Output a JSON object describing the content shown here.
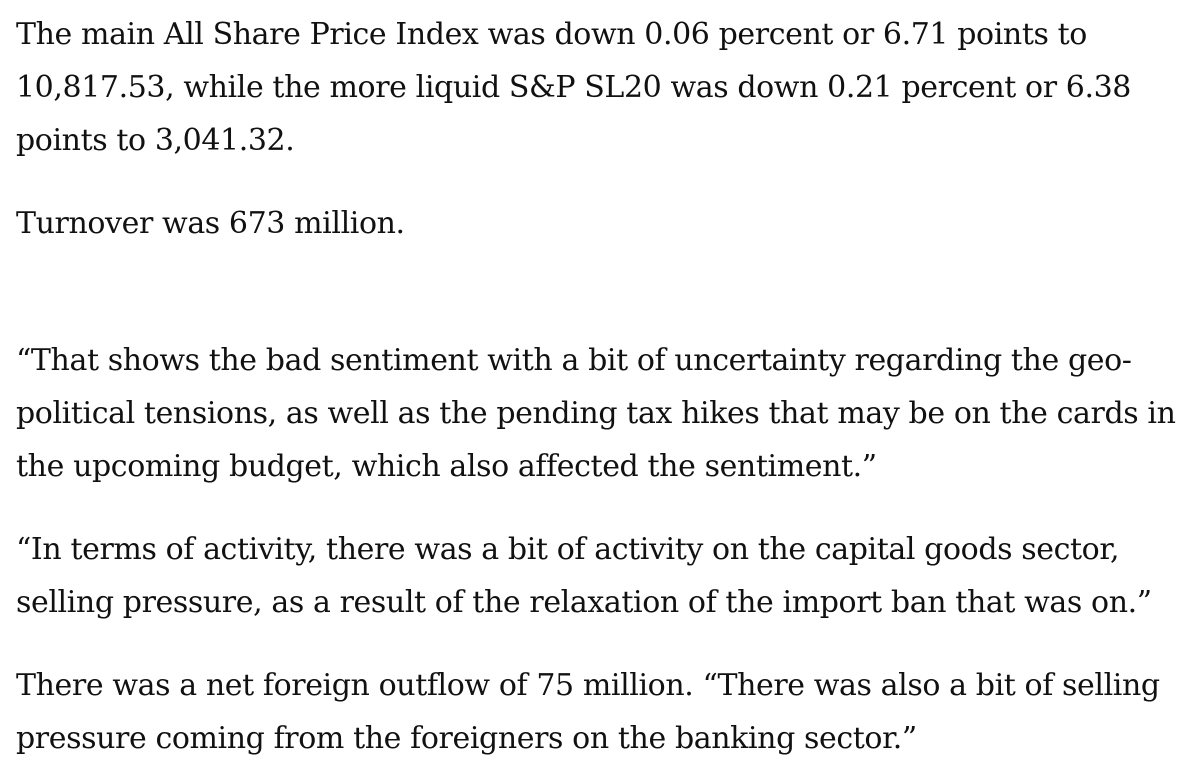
{
  "article": {
    "paragraphs": [
      "The main All Share Price Index was down 0.06 percent or 6.71 points to 10,817.53, while the more liquid S&P SL20 was down 0.21 percent or 6.38 points to 3,041.32.",
      "Turnover was 673 million.",
      "“That shows the bad sentiment with a bit of uncertainty regarding the geo-political tensions, as well as the pending tax hikes that may be on the cards in the upcoming budget, which also affected the sentiment.”",
      "“In terms of activity, there was a bit of activity on the capital goods sector, selling pressure, as a result of the relaxation of the import ban that was on.”",
      "There was a net foreign outflow of 75 million. “There was also a bit of selling pressure coming from the foreigners on the banking sector.”"
    ]
  }
}
